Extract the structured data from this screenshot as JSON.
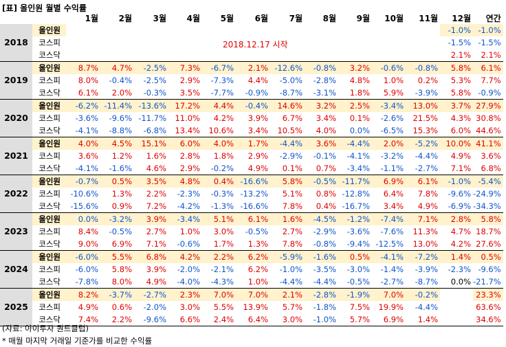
{
  "title": "[표] 올인원 월별 수익률",
  "headers": [
    "1월",
    "2월",
    "3월",
    "4월",
    "5월",
    "6월",
    "7월",
    "8월",
    "9월",
    "10월",
    "11월",
    "12월",
    "연간"
  ],
  "note": "2018.12.17 시작",
  "source": "(자료: 아이투자 퀀트클럽)",
  "footnote": "* 매월 마지막 거래일 기준가를 비교한 수익률",
  "colors": {
    "positive": "#e00000",
    "negative": "#1155cc",
    "highlight": "#fff2cc",
    "year_bg": "#dfdfdf"
  },
  "years": [
    {
      "year": "2018",
      "rows": [
        {
          "label": "올인원",
          "values": [
            "",
            "",
            "",
            "",
            "",
            "",
            "",
            "",
            "",
            "",
            "",
            "-1.0%",
            "-1.0%"
          ]
        },
        {
          "label": "코스피",
          "values": [
            "",
            "",
            "",
            "",
            "",
            "",
            "",
            "",
            "",
            "",
            "",
            "-1.5%",
            "-1.5%"
          ]
        },
        {
          "label": "코스닥",
          "values": [
            "",
            "",
            "",
            "",
            "",
            "",
            "",
            "",
            "",
            "",
            "",
            "2.1%",
            "2.1%"
          ]
        }
      ]
    },
    {
      "year": "2019",
      "rows": [
        {
          "label": "올인원",
          "values": [
            "8.7%",
            "4.7%",
            "-2.5%",
            "7.3%",
            "-6.7%",
            "2.1%",
            "-12.6%",
            "-0.8%",
            "3.2%",
            "-0.6%",
            "-0.8%",
            "5.8%",
            "6.1%"
          ]
        },
        {
          "label": "코스피",
          "values": [
            "8.0%",
            "-0.4%",
            "-2.5%",
            "2.9%",
            "-7.3%",
            "4.4%",
            "-5.0%",
            "-2.8%",
            "4.8%",
            "1.0%",
            "0.2%",
            "5.3%",
            "7.7%"
          ]
        },
        {
          "label": "코스닥",
          "values": [
            "6.1%",
            "2.0%",
            "-0.3%",
            "3.5%",
            "-7.7%",
            "-0.9%",
            "-8.7%",
            "-3.1%",
            "1.8%",
            "5.9%",
            "-3.9%",
            "5.8%",
            "-0.9%"
          ]
        }
      ]
    },
    {
      "year": "2020",
      "rows": [
        {
          "label": "올인원",
          "values": [
            "-6.2%",
            "-11.4%",
            "-13.6%",
            "17.2%",
            "4.4%",
            "-0.4%",
            "14.6%",
            "3.2%",
            "2.5%",
            "-3.4%",
            "13.0%",
            "3.7%",
            "27.9%"
          ]
        },
        {
          "label": "코스피",
          "values": [
            "-3.6%",
            "-9.6%",
            "-11.7%",
            "11.0%",
            "4.2%",
            "3.9%",
            "6.7%",
            "3.4%",
            "0.1%",
            "-2.6%",
            "21.5%",
            "4.3%",
            "30.8%"
          ]
        },
        {
          "label": "코스닥",
          "values": [
            "-4.1%",
            "-8.8%",
            "-6.8%",
            "13.4%",
            "10.6%",
            "3.4%",
            "10.5%",
            "4.0%",
            "0.0%",
            "-6.5%",
            "15.3%",
            "6.0%",
            "44.6%"
          ]
        }
      ]
    },
    {
      "year": "2021",
      "rows": [
        {
          "label": "올인원",
          "values": [
            "4.0%",
            "4.5%",
            "15.1%",
            "6.0%",
            "4.0%",
            "1.7%",
            "-4.4%",
            "3.6%",
            "-4.4%",
            "2.0%",
            "-5.2%",
            "10.0%",
            "41.1%"
          ]
        },
        {
          "label": "코스피",
          "values": [
            "3.6%",
            "1.2%",
            "1.6%",
            "2.8%",
            "1.8%",
            "2.9%",
            "-2.9%",
            "-0.1%",
            "-4.1%",
            "-3.2%",
            "-4.4%",
            "4.9%",
            "3.6%"
          ]
        },
        {
          "label": "코스닥",
          "values": [
            "-4.1%",
            "-1.6%",
            "4.6%",
            "2.9%",
            "-0.2%",
            "4.9%",
            "0.1%",
            "0.7%",
            "-3.4%",
            "-1.1%",
            "-2.7%",
            "7.1%",
            "6.8%"
          ]
        }
      ]
    },
    {
      "year": "2022",
      "rows": [
        {
          "label": "올인원",
          "values": [
            "-0.7%",
            "0.5%",
            "3.5%",
            "4.8%",
            "0.4%",
            "-16.6%",
            "5.8%",
            "-0.5%",
            "-11.7%",
            "6.9%",
            "6.1%",
            "-1.0%",
            "-5.4%"
          ]
        },
        {
          "label": "코스피",
          "values": [
            "-10.6%",
            "1.3%",
            "2.2%",
            "-2.3%",
            "-0.3%",
            "-13.2%",
            "5.1%",
            "0.8%",
            "-12.8%",
            "6.4%",
            "7.8%",
            "-9.6%",
            "-24.9%"
          ]
        },
        {
          "label": "코스닥",
          "values": [
            "-15.6%",
            "0.9%",
            "7.2%",
            "-4.2%",
            "-1.3%",
            "-16.6%",
            "7.8%",
            "0.4%",
            "-16.7%",
            "3.4%",
            "4.9%",
            "-6.9%",
            "-34.3%"
          ]
        }
      ]
    },
    {
      "year": "2023",
      "rows": [
        {
          "label": "올인원",
          "values": [
            "0.0%",
            "-3.2%",
            "3.9%",
            "-3.4%",
            "5.1%",
            "6.1%",
            "1.6%",
            "-4.5%",
            "-1.2%",
            "-7.4%",
            "7.1%",
            "2.8%",
            "5.8%"
          ]
        },
        {
          "label": "코스피",
          "values": [
            "8.4%",
            "-0.5%",
            "2.7%",
            "1.0%",
            "3.0%",
            "-0.5%",
            "2.7%",
            "-2.9%",
            "-3.6%",
            "-7.6%",
            "11.3%",
            "4.7%",
            "18.7%"
          ]
        },
        {
          "label": "코스닥",
          "values": [
            "9.0%",
            "6.9%",
            "7.1%",
            "-0.6%",
            "1.7%",
            "1.3%",
            "7.8%",
            "-0.8%",
            "-9.4%",
            "-12.5%",
            "13.0%",
            "4.2%",
            "27.6%"
          ]
        }
      ]
    },
    {
      "year": "2024",
      "rows": [
        {
          "label": "올인원",
          "values": [
            "-6.0%",
            "5.5%",
            "6.8%",
            "4.2%",
            "2.2%",
            "6.2%",
            "-5.9%",
            "-1.6%",
            "0.5%",
            "-4.1%",
            "-7.2%",
            "1.4%",
            "0.5%"
          ]
        },
        {
          "label": "코스피",
          "values": [
            "-6.0%",
            "5.8%",
            "3.9%",
            "-2.0%",
            "-2.1%",
            "6.2%",
            "-1.0%",
            "-3.5%",
            "-3.0%",
            "-1.4%",
            "-3.9%",
            "-2.3%",
            "-9.6%"
          ]
        },
        {
          "label": "코스닥",
          "values": [
            "-7.8%",
            "8.0%",
            "4.9%",
            "-4.0%",
            "-4.3%",
            "1.0%",
            "-4.4%",
            "-4.4%",
            "-0.5%",
            "-2.7%",
            "-8.7%",
            "0.0%",
            "-21.7%"
          ]
        }
      ]
    },
    {
      "year": "2025",
      "rows": [
        {
          "label": "올인원",
          "values": [
            "8.2%",
            "-3.7%",
            "-2.7%",
            "2.3%",
            "7.0%",
            "7.0%",
            "2.1%",
            "-2.8%",
            "-1.9%",
            "7.0%",
            "-0.2%",
            "",
            "23.3%"
          ]
        },
        {
          "label": "코스피",
          "values": [
            "4.9%",
            "0.6%",
            "-2.0%",
            "3.0%",
            "5.5%",
            "13.9%",
            "5.7%",
            "-1.8%",
            "7.5%",
            "19.9%",
            "-4.4%",
            "",
            "63.6%"
          ]
        },
        {
          "label": "코스닥",
          "values": [
            "7.4%",
            "2.2%",
            "-9.6%",
            "6.6%",
            "2.4%",
            "6.4%",
            "3.0%",
            "-1.0%",
            "5.7%",
            "6.9%",
            "1.4%",
            "",
            "34.6%"
          ]
        }
      ]
    }
  ]
}
